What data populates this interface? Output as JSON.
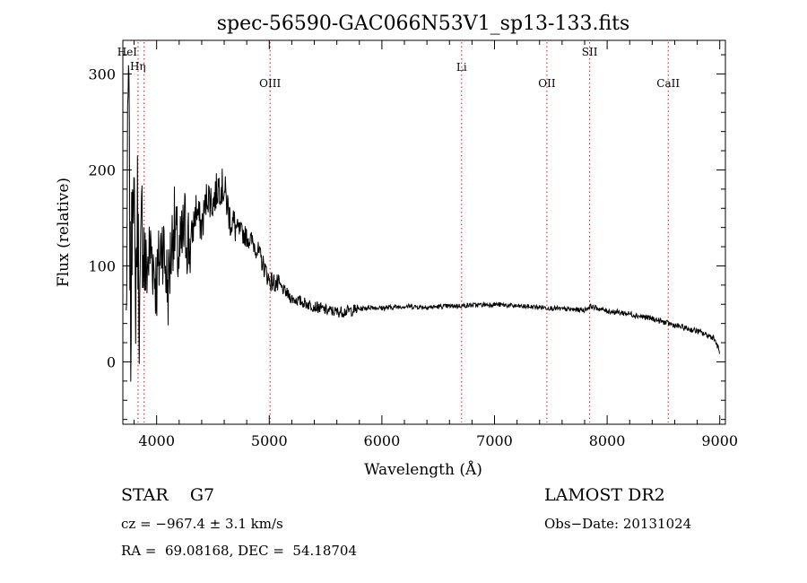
{
  "chart_data": {
    "type": "line",
    "title": "spec-56590-GAC066N53V1_sp13-133.fits",
    "xlabel": "Wavelength (Å)",
    "ylabel": "Flux (relative)",
    "xlim": [
      3700,
      9050
    ],
    "ylim": [
      -65,
      335
    ],
    "x_ticks": [
      4000,
      5000,
      6000,
      7000,
      8000,
      9000
    ],
    "y_ticks": [
      0,
      100,
      200,
      300
    ],
    "grid": false,
    "line_color": "#000000",
    "marker_color": "#ff0000",
    "series": [
      {
        "x": [
          3730,
          3750,
          3770,
          3790,
          3810,
          3830,
          3850,
          3870,
          3900,
          3950,
          4000,
          4050,
          4100,
          4150,
          4200,
          4250,
          4300,
          4350,
          4400,
          4450,
          4500,
          4550,
          4600,
          4650,
          4700,
          4750,
          4800,
          4850,
          4900,
          4950,
          5000,
          5050,
          5100,
          5150,
          5200,
          5300,
          5400,
          5500,
          5600,
          5700,
          5800,
          5900,
          6000,
          6200,
          6400,
          6600,
          6800,
          7000,
          7200,
          7400,
          7600,
          7800,
          7850,
          8000,
          8200,
          8400,
          8600,
          8800,
          8950,
          9000
        ],
        "y": [
          40,
          305,
          20,
          240,
          60,
          160,
          40,
          150,
          90,
          120,
          80,
          130,
          75,
          145,
          105,
          140,
          120,
          160,
          140,
          175,
          165,
          185,
          180,
          150,
          140,
          135,
          130,
          125,
          115,
          100,
          85,
          82,
          78,
          72,
          66,
          62,
          58,
          54,
          52,
          53,
          55,
          57,
          56,
          58,
          57,
          58,
          59,
          60,
          58,
          57,
          55,
          54,
          58,
          53,
          50,
          45,
          38,
          32,
          25,
          10
        ]
      }
    ],
    "line_markers": [
      {
        "label": "Hη",
        "x": 3835
      },
      {
        "label": "HeI",
        "x": 3889
      },
      {
        "label": "OIII",
        "x": 5007
      },
      {
        "label": "Li",
        "x": 6708
      },
      {
        "label": "OII",
        "x": 7465
      },
      {
        "label": "SII",
        "x": 7845
      },
      {
        "label": "CaII",
        "x": 8542
      }
    ]
  },
  "info": {
    "class_line": "STAR    G7",
    "survey": "LAMOST DR2",
    "cz": "cz = −967.4 ± 3.1 km/s",
    "obs_date": "Obs−Date: 20131024",
    "coords": "RA =  69.08168, DEC =  54.18704"
  }
}
